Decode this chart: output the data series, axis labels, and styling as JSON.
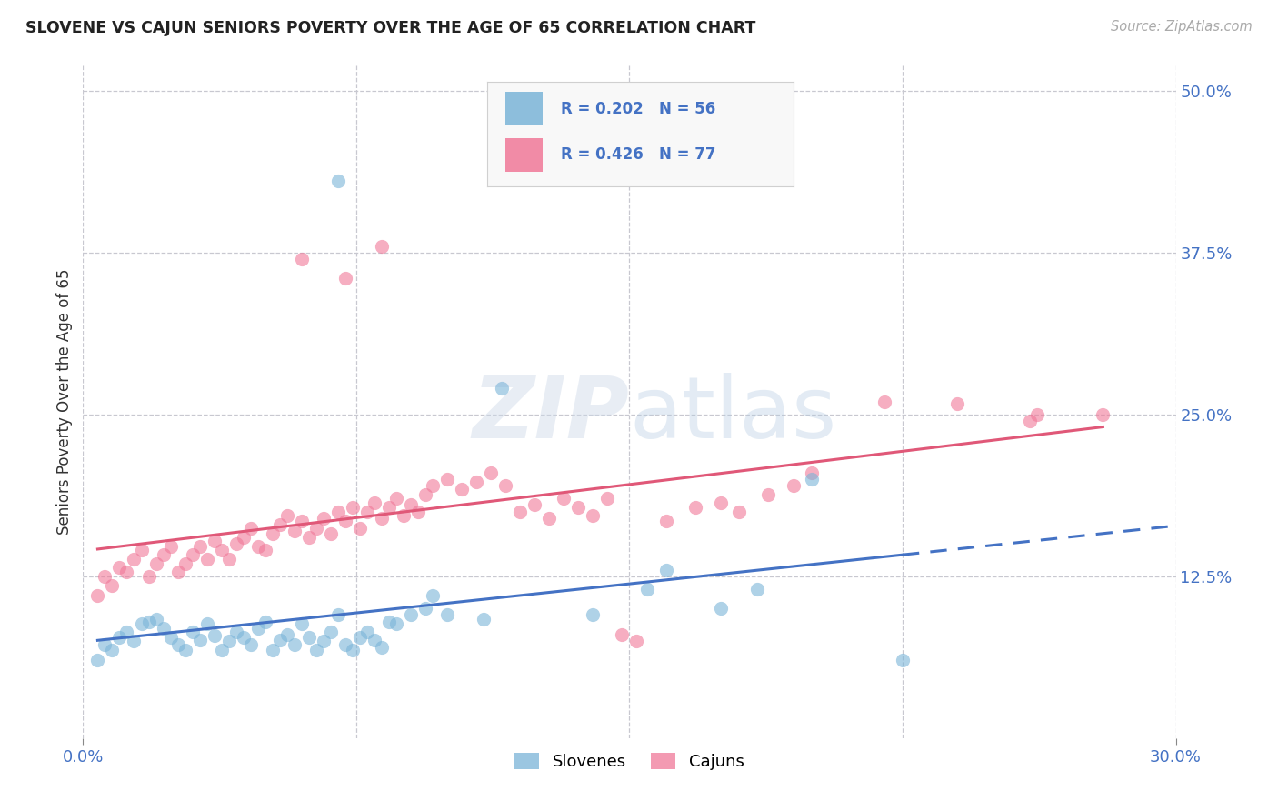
{
  "title": "SLOVENE VS CAJUN SENIORS POVERTY OVER THE AGE OF 65 CORRELATION CHART",
  "source": "Source: ZipAtlas.com",
  "ylabel": "Seniors Poverty Over the Age of 65",
  "xlim": [
    0.0,
    0.3
  ],
  "ylim": [
    0.0,
    0.52
  ],
  "ytick_labels": [
    "12.5%",
    "25.0%",
    "37.5%",
    "50.0%"
  ],
  "ytick_vals": [
    0.125,
    0.25,
    0.375,
    0.5
  ],
  "slovene_color": "#7ab4d8",
  "cajun_color": "#f07898",
  "slovene_line_color": "#4472c4",
  "cajun_line_color": "#e05878",
  "background_color": "#ffffff",
  "grid_color": "#c8c8d0",
  "slovene_points": [
    [
      0.004,
      0.06
    ],
    [
      0.006,
      0.072
    ],
    [
      0.008,
      0.068
    ],
    [
      0.01,
      0.078
    ],
    [
      0.012,
      0.082
    ],
    [
      0.014,
      0.075
    ],
    [
      0.016,
      0.088
    ],
    [
      0.018,
      0.09
    ],
    [
      0.02,
      0.092
    ],
    [
      0.022,
      0.085
    ],
    [
      0.024,
      0.078
    ],
    [
      0.026,
      0.072
    ],
    [
      0.028,
      0.068
    ],
    [
      0.03,
      0.082
    ],
    [
      0.032,
      0.076
    ],
    [
      0.034,
      0.088
    ],
    [
      0.036,
      0.079
    ],
    [
      0.038,
      0.068
    ],
    [
      0.04,
      0.075
    ],
    [
      0.042,
      0.082
    ],
    [
      0.044,
      0.078
    ],
    [
      0.046,
      0.072
    ],
    [
      0.048,
      0.085
    ],
    [
      0.05,
      0.09
    ],
    [
      0.052,
      0.068
    ],
    [
      0.054,
      0.076
    ],
    [
      0.056,
      0.08
    ],
    [
      0.058,
      0.072
    ],
    [
      0.06,
      0.088
    ],
    [
      0.062,
      0.078
    ],
    [
      0.064,
      0.068
    ],
    [
      0.066,
      0.075
    ],
    [
      0.068,
      0.082
    ],
    [
      0.07,
      0.095
    ],
    [
      0.072,
      0.072
    ],
    [
      0.074,
      0.068
    ],
    [
      0.076,
      0.078
    ],
    [
      0.078,
      0.082
    ],
    [
      0.08,
      0.076
    ],
    [
      0.082,
      0.07
    ],
    [
      0.084,
      0.09
    ],
    [
      0.086,
      0.088
    ],
    [
      0.09,
      0.095
    ],
    [
      0.094,
      0.1
    ],
    [
      0.096,
      0.11
    ],
    [
      0.1,
      0.095
    ],
    [
      0.11,
      0.092
    ],
    [
      0.07,
      0.43
    ],
    [
      0.115,
      0.27
    ],
    [
      0.14,
      0.095
    ],
    [
      0.155,
      0.115
    ],
    [
      0.16,
      0.13
    ],
    [
      0.175,
      0.1
    ],
    [
      0.185,
      0.115
    ],
    [
      0.2,
      0.2
    ],
    [
      0.225,
      0.06
    ]
  ],
  "cajun_points": [
    [
      0.004,
      0.11
    ],
    [
      0.006,
      0.125
    ],
    [
      0.008,
      0.118
    ],
    [
      0.01,
      0.132
    ],
    [
      0.012,
      0.128
    ],
    [
      0.014,
      0.138
    ],
    [
      0.016,
      0.145
    ],
    [
      0.018,
      0.125
    ],
    [
      0.02,
      0.135
    ],
    [
      0.022,
      0.142
    ],
    [
      0.024,
      0.148
    ],
    [
      0.026,
      0.128
    ],
    [
      0.028,
      0.135
    ],
    [
      0.03,
      0.142
    ],
    [
      0.032,
      0.148
    ],
    [
      0.034,
      0.138
    ],
    [
      0.036,
      0.152
    ],
    [
      0.038,
      0.145
    ],
    [
      0.04,
      0.138
    ],
    [
      0.042,
      0.15
    ],
    [
      0.044,
      0.155
    ],
    [
      0.046,
      0.162
    ],
    [
      0.048,
      0.148
    ],
    [
      0.05,
      0.145
    ],
    [
      0.052,
      0.158
    ],
    [
      0.054,
      0.165
    ],
    [
      0.056,
      0.172
    ],
    [
      0.058,
      0.16
    ],
    [
      0.06,
      0.168
    ],
    [
      0.062,
      0.155
    ],
    [
      0.064,
      0.162
    ],
    [
      0.066,
      0.17
    ],
    [
      0.068,
      0.158
    ],
    [
      0.07,
      0.175
    ],
    [
      0.072,
      0.168
    ],
    [
      0.074,
      0.178
    ],
    [
      0.076,
      0.162
    ],
    [
      0.078,
      0.175
    ],
    [
      0.08,
      0.182
    ],
    [
      0.082,
      0.17
    ],
    [
      0.084,
      0.178
    ],
    [
      0.086,
      0.185
    ],
    [
      0.088,
      0.172
    ],
    [
      0.09,
      0.18
    ],
    [
      0.092,
      0.175
    ],
    [
      0.094,
      0.188
    ],
    [
      0.06,
      0.37
    ],
    [
      0.072,
      0.355
    ],
    [
      0.082,
      0.38
    ],
    [
      0.096,
      0.195
    ],
    [
      0.1,
      0.2
    ],
    [
      0.104,
      0.192
    ],
    [
      0.108,
      0.198
    ],
    [
      0.112,
      0.205
    ],
    [
      0.116,
      0.195
    ],
    [
      0.12,
      0.175
    ],
    [
      0.124,
      0.18
    ],
    [
      0.128,
      0.17
    ],
    [
      0.132,
      0.185
    ],
    [
      0.136,
      0.178
    ],
    [
      0.14,
      0.172
    ],
    [
      0.144,
      0.185
    ],
    [
      0.148,
      0.08
    ],
    [
      0.152,
      0.075
    ],
    [
      0.16,
      0.168
    ],
    [
      0.168,
      0.178
    ],
    [
      0.175,
      0.182
    ],
    [
      0.18,
      0.175
    ],
    [
      0.188,
      0.188
    ],
    [
      0.195,
      0.195
    ],
    [
      0.2,
      0.205
    ],
    [
      0.22,
      0.26
    ],
    [
      0.24,
      0.258
    ],
    [
      0.26,
      0.245
    ],
    [
      0.262,
      0.25
    ],
    [
      0.28,
      0.25
    ]
  ]
}
